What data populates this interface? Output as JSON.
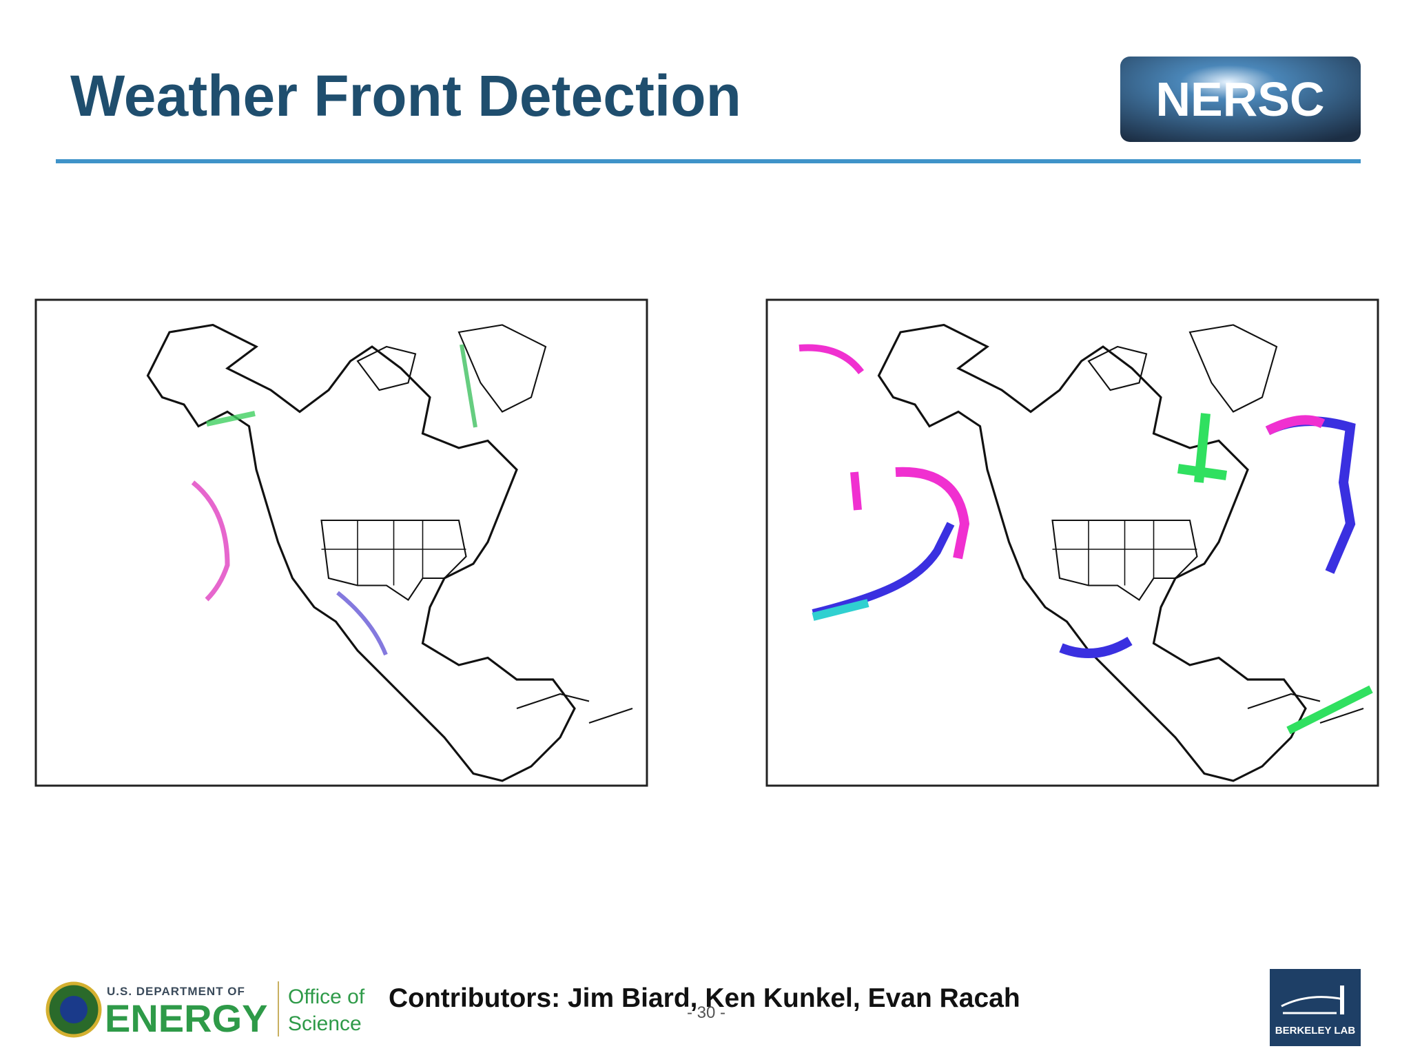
{
  "header": {
    "title": "Weather Front Detection",
    "logo": "NERSC"
  },
  "footer": {
    "doe_top": "U.S. DEPARTMENT OF",
    "doe_main": "ENERGY",
    "office_1": "Office of",
    "office_2": "Science",
    "contributors": "Contributors: Jim Biard, Ken Kunkel, Evan Racah",
    "page_number": "- 30 -",
    "lab": "BERKELEY LAB"
  }
}
